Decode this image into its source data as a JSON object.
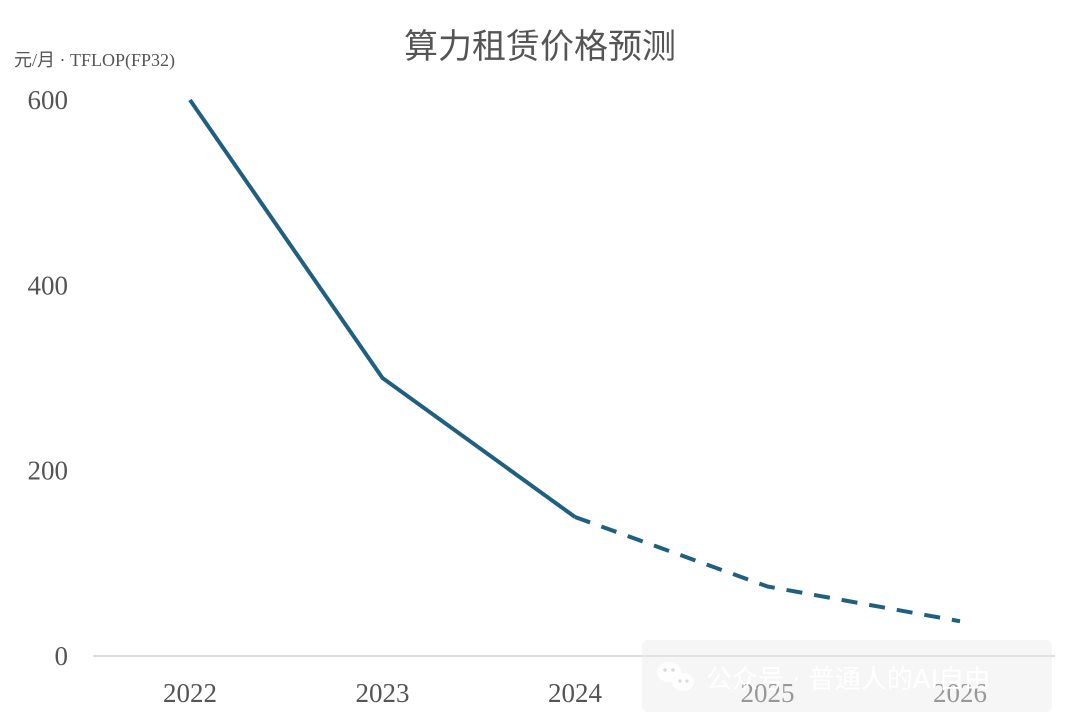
{
  "chart_data": {
    "type": "line",
    "title": "算力租赁价格预测",
    "ylabel": "元/月 · TFLOP(FP32)",
    "xlabel": "",
    "categories": [
      "2022",
      "2023",
      "2024",
      "2025",
      "2026"
    ],
    "series": [
      {
        "values": [
          600,
          300,
          150,
          75,
          37.5
        ],
        "actual_through_index": 2,
        "forecast_from_index": 2,
        "color": "#1f5f7f"
      }
    ],
    "ylim": [
      0,
      600
    ],
    "yticks": [
      0,
      200,
      400,
      600
    ],
    "grid": false,
    "legend": "none"
  },
  "watermark": {
    "text": "公众号 · 普通人的AI自由",
    "icon": "wechat-icon"
  }
}
